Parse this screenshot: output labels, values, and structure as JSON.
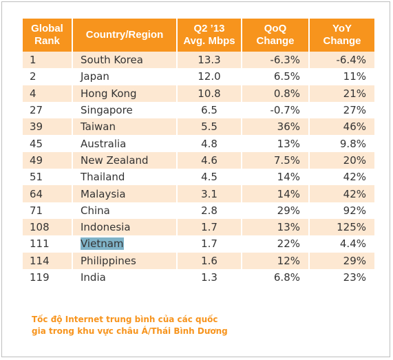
{
  "table": {
    "headers": {
      "rank": [
        "Global",
        "Rank"
      ],
      "country": [
        "Country/Region"
      ],
      "speed": [
        "Q2 ’13",
        "Avg. Mbps"
      ],
      "qoq": [
        "QoQ",
        "Change"
      ],
      "yoy": [
        "YoY",
        "Change"
      ]
    },
    "rows": [
      {
        "rank": "1",
        "country": "South Korea",
        "speed": "13.3",
        "qoq": "-6.3%",
        "yoy": "-6.4%"
      },
      {
        "rank": "2",
        "country": "Japan",
        "speed": "12.0",
        "qoq": "6.5%",
        "yoy": "11%"
      },
      {
        "rank": "4",
        "country": "Hong Kong",
        "speed": "10.8",
        "qoq": "0.8%",
        "yoy": "21%"
      },
      {
        "rank": "27",
        "country": "Singapore",
        "speed": "6.5",
        "qoq": "-0.7%",
        "yoy": "27%"
      },
      {
        "rank": "39",
        "country": "Taiwan",
        "speed": "5.5",
        "qoq": "36%",
        "yoy": "46%"
      },
      {
        "rank": "45",
        "country": "Australia",
        "speed": "4.8",
        "qoq": "13%",
        "yoy": "9.8%"
      },
      {
        "rank": "49",
        "country": "New Zealand",
        "speed": "4.6",
        "qoq": "7.5%",
        "yoy": "20%"
      },
      {
        "rank": "51",
        "country": "Thailand",
        "speed": "4.5",
        "qoq": "14%",
        "yoy": "42%"
      },
      {
        "rank": "64",
        "country": "Malaysia",
        "speed": "3.1",
        "qoq": "14%",
        "yoy": "42%"
      },
      {
        "rank": "71",
        "country": "China",
        "speed": "2.8",
        "qoq": "29%",
        "yoy": "92%"
      },
      {
        "rank": "108",
        "country": "Indonesia",
        "speed": "1.7",
        "qoq": "13%",
        "yoy": "125%"
      },
      {
        "rank": "111",
        "country": "Vietnam",
        "speed": "1.7",
        "qoq": "22%",
        "yoy": "4.4%"
      },
      {
        "rank": "114",
        "country": "Philippines",
        "speed": "1.6",
        "qoq": "12%",
        "yoy": "29%"
      },
      {
        "rank": "119",
        "country": "India",
        "speed": "1.3",
        "qoq": "6.8%",
        "yoy": "23%"
      }
    ]
  },
  "caption": [
    "Tốc độ Internet trung bình của các quốc",
    "gia trong khu vực châu Á/Thái Bình Dương"
  ],
  "colors": {
    "header": "#f7941d",
    "stripe": "#fde8d2",
    "highlight": "#7fb3c8",
    "caption": "#f7941d"
  }
}
